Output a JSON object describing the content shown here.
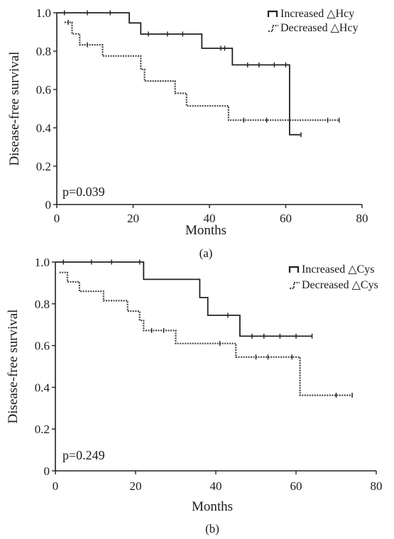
{
  "chart_data": [
    {
      "type": "line",
      "panel_label": "(a)",
      "ylabel": "Disease-free survival",
      "xlabel": "Months",
      "xlim": [
        0,
        80
      ],
      "ylim": [
        0,
        1.0
      ],
      "x_ticks": [
        "0",
        "20",
        "40",
        "60",
        "80"
      ],
      "y_ticks": [
        "0",
        "0.2",
        "0.4",
        "0.6",
        "0.8",
        "1.0"
      ],
      "annotation": "p=0.039",
      "legend_position": "top-right",
      "series": [
        {
          "name": "Increased △Hcy",
          "style": "solid",
          "steps": [
            [
              0,
              1.0
            ],
            [
              19,
              1.0
            ],
            [
              19,
              0.947
            ],
            [
              22,
              0.947
            ],
            [
              22,
              0.889
            ],
            [
              38,
              0.889
            ],
            [
              38,
              0.815
            ],
            [
              46,
              0.815
            ],
            [
              46,
              0.728
            ],
            [
              61,
              0.728
            ],
            [
              61,
              0.364
            ],
            [
              64,
              0.364
            ]
          ],
          "censored": [
            [
              2,
              1.0
            ],
            [
              8,
              1.0
            ],
            [
              14,
              1.0
            ],
            [
              24,
              0.889
            ],
            [
              29,
              0.889
            ],
            [
              33,
              0.889
            ],
            [
              43,
              0.815
            ],
            [
              44,
              0.815
            ],
            [
              50,
              0.728
            ],
            [
              53,
              0.728
            ],
            [
              57,
              0.728
            ],
            [
              60,
              0.728
            ],
            [
              64,
              0.364
            ]
          ]
        },
        {
          "name": "Decreased △Hcy",
          "style": "dotted",
          "steps": [
            [
              2,
              0.95
            ],
            [
              4,
              0.95
            ],
            [
              4,
              0.89
            ],
            [
              6,
              0.89
            ],
            [
              6,
              0.833
            ],
            [
              12,
              0.833
            ],
            [
              12,
              0.775
            ],
            [
              22,
              0.775
            ],
            [
              22,
              0.705
            ],
            [
              23,
              0.705
            ],
            [
              23,
              0.644
            ],
            [
              31,
              0.644
            ],
            [
              31,
              0.58
            ],
            [
              34,
              0.58
            ],
            [
              34,
              0.514
            ],
            [
              45,
              0.514
            ],
            [
              45,
              0.44
            ],
            [
              74,
              0.44
            ]
          ],
          "censored": [
            [
              3,
              0.95
            ],
            [
              8,
              0.833
            ],
            [
              49,
              0.44
            ],
            [
              55,
              0.44
            ],
            [
              61,
              0.44
            ],
            [
              71,
              0.44
            ],
            [
              74,
              0.44
            ]
          ]
        }
      ]
    },
    {
      "type": "line",
      "panel_label": "(b)",
      "ylabel": "Disease-free survival",
      "xlabel": "Months",
      "xlim": [
        0,
        80
      ],
      "ylim": [
        0,
        1.0
      ],
      "x_ticks": [
        "0",
        "20",
        "40",
        "60",
        "80"
      ],
      "y_ticks": [
        "0",
        "0.2",
        "0.4",
        "0.6",
        "0.8",
        "1.0"
      ],
      "annotation": "p=0.249",
      "legend_position": "top-right",
      "series": [
        {
          "name": "Increased △Cys",
          "style": "solid",
          "steps": [
            [
              0,
              1.0
            ],
            [
              22,
              1.0
            ],
            [
              22,
              0.917
            ],
            [
              36,
              0.917
            ],
            [
              36,
              0.83
            ],
            [
              38,
              0.83
            ],
            [
              38,
              0.745
            ],
            [
              46,
              0.745
            ],
            [
              46,
              0.645
            ],
            [
              64,
              0.645
            ]
          ],
          "censored": [
            [
              2,
              1.0
            ],
            [
              9,
              1.0
            ],
            [
              14,
              1.0
            ],
            [
              21,
              1.0
            ],
            [
              43,
              0.745
            ],
            [
              49,
              0.645
            ],
            [
              52,
              0.645
            ],
            [
              56,
              0.645
            ],
            [
              60,
              0.645
            ],
            [
              64,
              0.645
            ]
          ]
        },
        {
          "name": "Decreased △Cys",
          "style": "dotted",
          "steps": [
            [
              1,
              0.95
            ],
            [
              3,
              0.95
            ],
            [
              3,
              0.905
            ],
            [
              6,
              0.905
            ],
            [
              6,
              0.86
            ],
            [
              12,
              0.86
            ],
            [
              12,
              0.815
            ],
            [
              18,
              0.815
            ],
            [
              18,
              0.765
            ],
            [
              21,
              0.765
            ],
            [
              21,
              0.72
            ],
            [
              22,
              0.72
            ],
            [
              22,
              0.672
            ],
            [
              30,
              0.672
            ],
            [
              30,
              0.61
            ],
            [
              45,
              0.61
            ],
            [
              45,
              0.545
            ],
            [
              61,
              0.545
            ],
            [
              61,
              0.362
            ],
            [
              74,
              0.362
            ]
          ],
          "censored": [
            [
              24,
              0.672
            ],
            [
              27,
              0.672
            ],
            [
              41,
              0.61
            ],
            [
              50,
              0.545
            ],
            [
              53,
              0.545
            ],
            [
              59,
              0.545
            ],
            [
              70,
              0.362
            ],
            [
              74,
              0.362
            ]
          ]
        }
      ]
    }
  ]
}
